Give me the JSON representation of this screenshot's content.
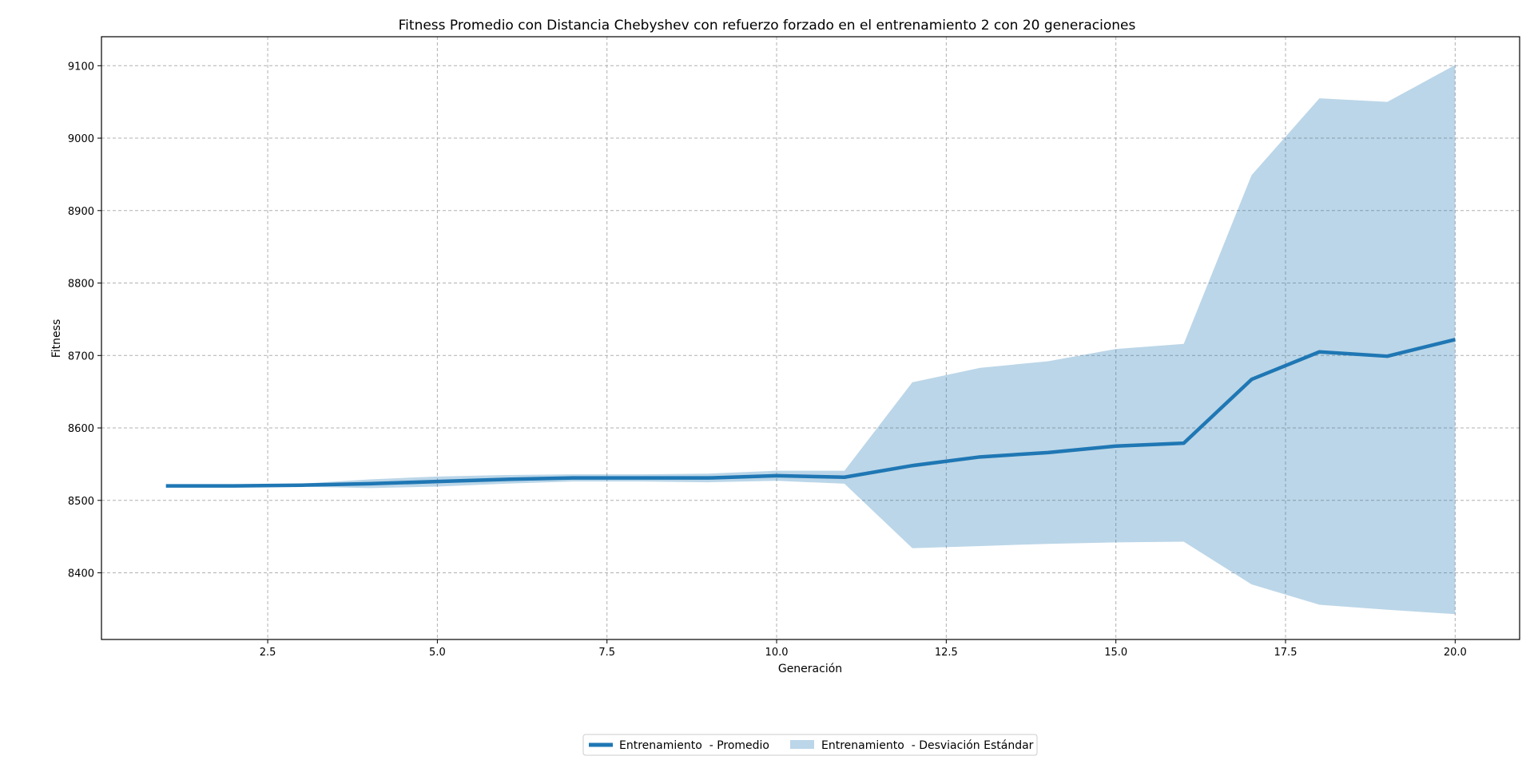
{
  "chart_data": {
    "type": "line",
    "title": "Fitness Promedio con Distancia Chebyshev con refuerzo forzado en el entrenamiento 2 con 20 generaciones",
    "xlabel": "Generación",
    "ylabel": "Fitness",
    "xlim": [
      0.05,
      20.95
    ],
    "ylim": [
      8308,
      9140
    ],
    "xticks": [
      2.5,
      5.0,
      7.5,
      10.0,
      12.5,
      15.0,
      17.5,
      20.0
    ],
    "xtick_labels": [
      "2.5",
      "5.0",
      "7.5",
      "10.0",
      "12.5",
      "15.0",
      "17.5",
      "20.0"
    ],
    "yticks": [
      8400,
      8500,
      8600,
      8700,
      8800,
      8900,
      9000,
      9100
    ],
    "ytick_labels": [
      "8400",
      "8500",
      "8600",
      "8700",
      "8800",
      "8900",
      "9000",
      "9100"
    ],
    "grid": true,
    "legend_position": "bottom-center",
    "x": [
      1,
      2,
      3,
      4,
      5,
      6,
      7,
      8,
      9,
      10,
      11,
      12,
      13,
      14,
      15,
      16,
      17,
      18,
      19,
      20
    ],
    "series": [
      {
        "name": "Entrenamiento  - Promedio",
        "kind": "line",
        "color": "#1f77b4",
        "values": [
          8520,
          8520,
          8521,
          8523,
          8526,
          8529,
          8531,
          8531,
          8531,
          8534,
          8532,
          8548,
          8560,
          8566,
          8575,
          8579,
          8667,
          8705,
          8699,
          8722
        ]
      },
      {
        "name": "Entrenamiento  - Desviación Estándar",
        "kind": "band",
        "color": "#1f77b4",
        "opacity": 0.3,
        "upper": [
          8520,
          8520,
          8523,
          8529,
          8533,
          8535,
          8536,
          8536,
          8537,
          8541,
          8541,
          8663,
          8683,
          8692,
          8709,
          8716,
          8949,
          9055,
          9050,
          9101
        ],
        "lower": [
          8520,
          8520,
          8519,
          8517,
          8519,
          8523,
          8526,
          8526,
          8525,
          8527,
          8523,
          8434,
          8437,
          8440,
          8442,
          8443,
          8384,
          8356,
          8349,
          8343
        ]
      }
    ]
  }
}
